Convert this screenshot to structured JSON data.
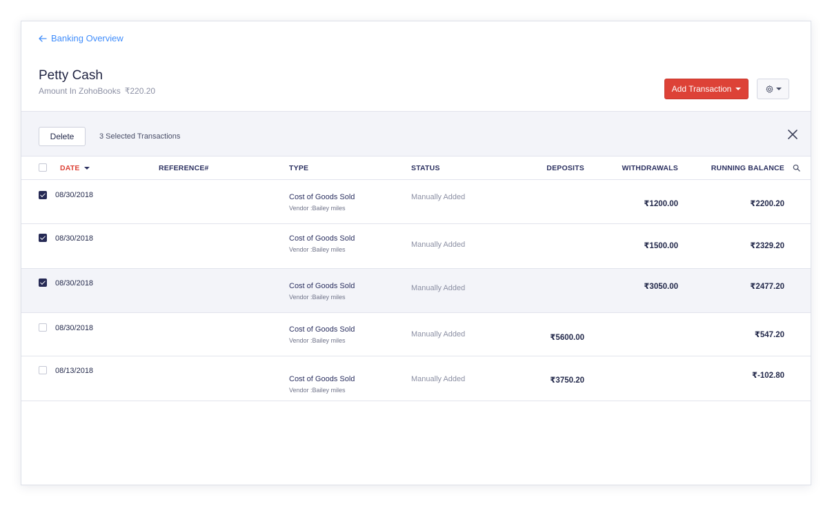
{
  "back_link": {
    "label": "Banking Overview"
  },
  "account": {
    "name": "Petty Cash",
    "amount_label": "Amount In ZohoBooks",
    "amount_value": "₹220.20"
  },
  "actions": {
    "add_transaction_label": "Add Transaction",
    "gear_icon": "gear-icon"
  },
  "bulk_bar": {
    "delete_label": "Delete",
    "selected_text": "3 Selected Transactions",
    "close_icon": "close-icon"
  },
  "table": {
    "headers": {
      "date": "DATE",
      "reference": "REFERENCE#",
      "type": "TYPE",
      "status": "STATUS",
      "deposits": "DEPOSITS",
      "withdrawals": "WITHDRAWALS",
      "running_balance": "RUNNING BALANCE"
    },
    "rows": [
      {
        "checked": true,
        "date": "08/30/2018",
        "type": "Cost of Goods Sold",
        "vendor": "Vendor :Bailey miles",
        "status": "Manually Added",
        "deposits": "",
        "withdrawals": "₹1200.00",
        "balance": "₹2200.20"
      },
      {
        "checked": true,
        "date": "08/30/2018",
        "type": "Cost of Goods Sold",
        "vendor": "Vendor :Bailey miles",
        "status": "Manually Added",
        "deposits": "",
        "withdrawals": "₹1500.00",
        "balance": "₹2329.20"
      },
      {
        "checked": true,
        "date": "08/30/2018",
        "type": "Cost of Goods Sold",
        "vendor": "Vendor :Bailey miles",
        "status": "Manually Added",
        "deposits": "",
        "withdrawals": "₹3050.00",
        "balance": "₹2477.20"
      },
      {
        "checked": false,
        "date": "08/30/2018",
        "type": "Cost of Goods Sold",
        "vendor": "Vendor :Bailey miles",
        "status": "Manually Added",
        "deposits": "₹5600.00",
        "withdrawals": "",
        "balance": "₹547.20"
      },
      {
        "checked": false,
        "date": "08/13/2018",
        "type": "Cost of Goods Sold",
        "vendor": "Vendor :Bailey miles",
        "status": "Manually Added",
        "deposits": "₹3750.20",
        "withdrawals": "",
        "balance": "₹-102.80"
      }
    ]
  },
  "colors": {
    "accent": "#408dfb",
    "primary_button": "#dd4237",
    "checkbox_checked": "#262a55",
    "bulk_bar_bg": "#f3f4f9"
  }
}
